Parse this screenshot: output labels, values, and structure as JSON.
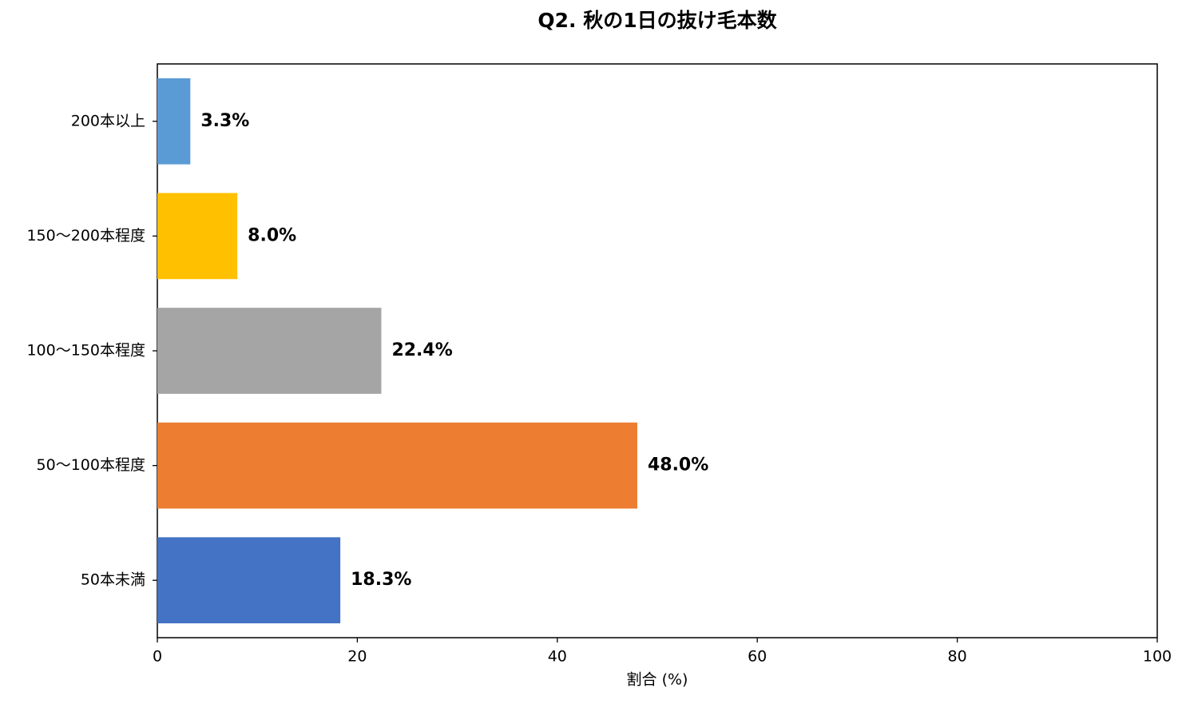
{
  "chart_data": {
    "type": "barh",
    "title": "Q2. 秋の1日の抜け毛本数",
    "xlabel": "割合 (%)",
    "categories": [
      "50本未満",
      "50〜100本程度",
      "100〜150本程度",
      "150〜200本程度",
      "200本以上"
    ],
    "values": [
      18.3,
      48.0,
      22.4,
      8.0,
      3.3
    ],
    "value_labels": [
      "18.3%",
      "48.0%",
      "22.4%",
      "8.0%",
      "3.3%"
    ],
    "colors": [
      "#4472c4",
      "#ed7d31",
      "#a5a5a5",
      "#ffc000",
      "#5b9bd5"
    ],
    "xlim": [
      0,
      100
    ],
    "xticks": [
      0,
      20,
      40,
      60,
      80,
      100
    ],
    "grid": false
  }
}
